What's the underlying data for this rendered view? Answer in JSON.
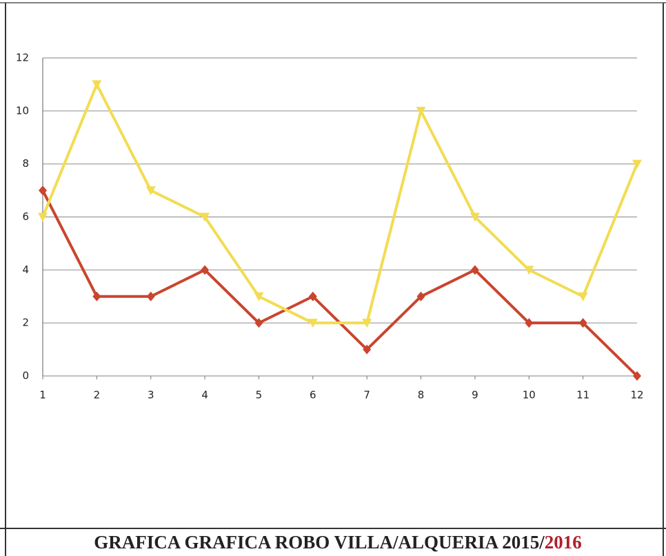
{
  "chart_data": {
    "type": "line",
    "title": [
      "GRAFICA GRAFICA ROBO VILLA/ALQUERIA 2015/",
      "2016"
    ],
    "x": [
      1,
      2,
      3,
      4,
      5,
      6,
      7,
      8,
      9,
      10,
      11,
      12
    ],
    "series": [
      {
        "color": "#f2dc52",
        "marker": "triangle",
        "values": [
          6,
          11,
          7,
          6,
          3,
          2,
          2,
          10,
          6,
          4,
          3,
          8
        ]
      },
      {
        "color": "#c9452e",
        "marker": "diamond",
        "values": [
          7,
          3,
          3,
          4,
          2,
          3,
          1,
          3,
          4,
          2,
          2,
          0
        ]
      }
    ],
    "xlim": [
      1,
      12
    ],
    "xticks": [
      1,
      2,
      3,
      4,
      5,
      6,
      7,
      8,
      9,
      10,
      11,
      12
    ],
    "ylim": [
      0,
      12
    ],
    "yticks": [
      0,
      2,
      4,
      6,
      8,
      10,
      12
    ],
    "grid": true
  }
}
